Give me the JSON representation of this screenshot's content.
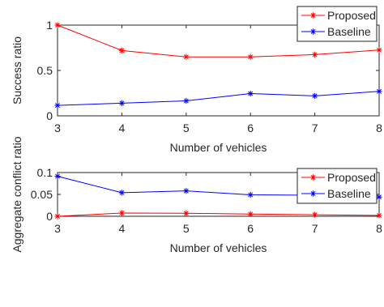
{
  "chart_data": [
    {
      "type": "line",
      "title": "",
      "xlabel": "Number of vehicles",
      "ylabel": "Success ratio",
      "x": [
        3,
        4,
        5,
        6,
        7,
        8
      ],
      "xlim": [
        3,
        8
      ],
      "ylim": [
        0,
        1
      ],
      "yticks": [
        0,
        0.5,
        1
      ],
      "ytick_labels": [
        "0",
        "0.5",
        "1"
      ],
      "grid": false,
      "legend_position": "top-right",
      "series": [
        {
          "name": "Proposed",
          "color": "#ff0000",
          "marker": "asterisk",
          "values": [
            1.0,
            0.72,
            0.65,
            0.65,
            0.675,
            0.725
          ]
        },
        {
          "name": "Baseline",
          "color": "#0000ff",
          "marker": "asterisk",
          "values": [
            0.115,
            0.14,
            0.165,
            0.245,
            0.22,
            0.27
          ]
        }
      ]
    },
    {
      "type": "line",
      "title": "",
      "xlabel": "Number of vehicles",
      "ylabel": "Aggregate conflict ratio",
      "x": [
        3,
        4,
        5,
        6,
        7,
        8
      ],
      "xlim": [
        3,
        8
      ],
      "ylim": [
        0,
        0.1
      ],
      "yticks": [
        0,
        0.05,
        0.1
      ],
      "ytick_labels": [
        "0",
        "0.05",
        "0.1"
      ],
      "grid": false,
      "legend_position": "top-right",
      "series": [
        {
          "name": "Proposed",
          "color": "#ff0000",
          "marker": "asterisk",
          "values": [
            0.0,
            0.0075,
            0.007,
            0.005,
            0.0035,
            0.002
          ]
        },
        {
          "name": "Baseline",
          "color": "#0000ff",
          "marker": "asterisk",
          "values": [
            0.0915,
            0.054,
            0.058,
            0.049,
            0.048,
            0.044
          ]
        }
      ]
    }
  ]
}
